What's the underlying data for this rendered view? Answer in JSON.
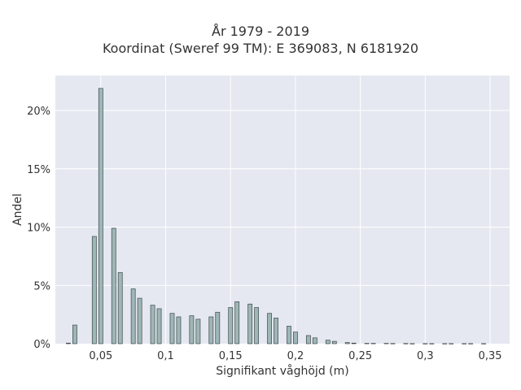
{
  "chart_data": {
    "type": "bar",
    "title": "År 1979 - 2019",
    "subtitle": "Koordinat (Sweref 99 TM): E 369083, N 6181920",
    "xlabel": "Signifikant våghöjd (m)",
    "ylabel": "Andel",
    "xlim": [
      0.015,
      0.365
    ],
    "ylim": [
      0,
      0.23
    ],
    "x_ticks": [
      {
        "value": 0.05,
        "label": "0,05"
      },
      {
        "value": 0.1,
        "label": "0,1"
      },
      {
        "value": 0.15,
        "label": "0,15"
      },
      {
        "value": 0.2,
        "label": "0,2"
      },
      {
        "value": 0.25,
        "label": "0,25"
      },
      {
        "value": 0.3,
        "label": "0,3"
      },
      {
        "value": 0.35,
        "label": "0,35"
      }
    ],
    "y_ticks": [
      {
        "value": 0,
        "label": "0%"
      },
      {
        "value": 0.05,
        "label": "5%"
      },
      {
        "value": 0.1,
        "label": "10%"
      },
      {
        "value": 0.15,
        "label": "15%"
      },
      {
        "value": 0.2,
        "label": "20%"
      }
    ],
    "bar_width": 0.0032,
    "x": [
      0.025,
      0.03,
      0.045,
      0.05,
      0.06,
      0.065,
      0.075,
      0.08,
      0.09,
      0.095,
      0.105,
      0.11,
      0.12,
      0.125,
      0.135,
      0.14,
      0.15,
      0.155,
      0.165,
      0.17,
      0.18,
      0.185,
      0.195,
      0.2,
      0.21,
      0.215,
      0.225,
      0.23,
      0.24,
      0.245,
      0.255,
      0.26,
      0.27,
      0.275,
      0.285,
      0.29,
      0.3,
      0.305,
      0.315,
      0.32,
      0.33,
      0.335,
      0.345
    ],
    "values": [
      0.0005,
      0.016,
      0.092,
      0.219,
      0.099,
      0.061,
      0.047,
      0.039,
      0.033,
      0.03,
      0.026,
      0.023,
      0.024,
      0.021,
      0.023,
      0.027,
      0.031,
      0.036,
      0.034,
      0.031,
      0.026,
      0.022,
      0.015,
      0.01,
      0.007,
      0.005,
      0.003,
      0.002,
      0.001,
      0.0005,
      0.0003,
      0.0003,
      0.0003,
      0.0002,
      0.0002,
      0.0001,
      0.0001,
      0.0001,
      0.0001,
      0.0001,
      0.0001,
      0.0001,
      0.0001
    ],
    "grid": true,
    "colors": {
      "plot_background": "#e5e8f1",
      "grid": "#ffffff",
      "bar_fill": "#9fb6b6",
      "bar_stroke": "#3d4a4a"
    }
  }
}
